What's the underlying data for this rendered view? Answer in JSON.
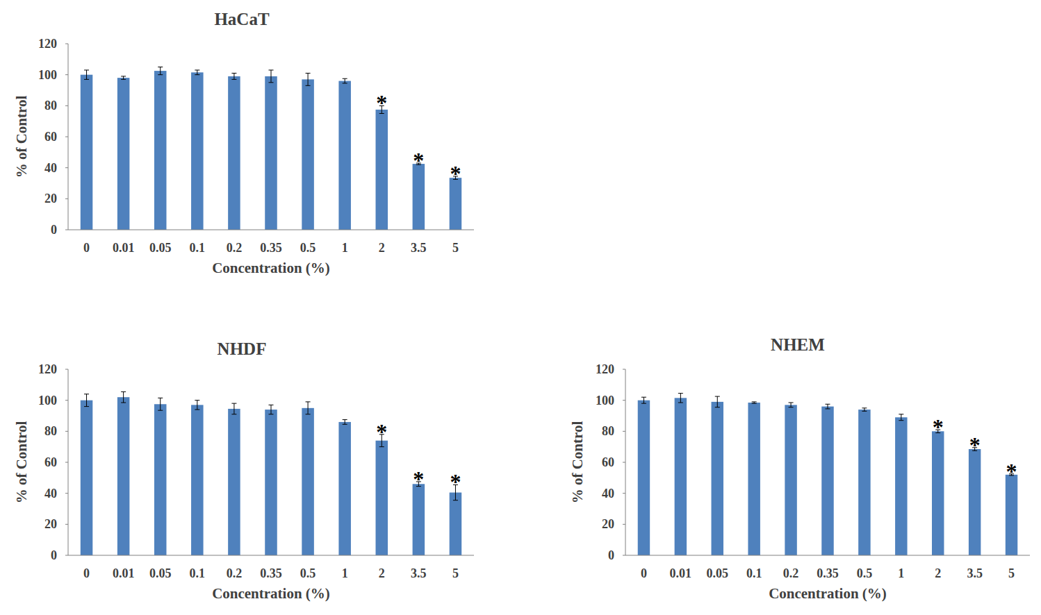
{
  "chart_data": [
    {
      "type": "bar",
      "title": "HaCaT",
      "categories": [
        "0",
        "0.01",
        "0.05",
        "0.1",
        "0.2",
        "0.35",
        "0.5",
        "1",
        "2",
        "3.5",
        "5"
      ],
      "values": [
        100,
        98,
        102.5,
        101.5,
        99,
        99,
        97,
        96,
        77.5,
        42.5,
        33.5
      ],
      "errors": [
        3,
        1,
        2.5,
        1.5,
        2,
        4,
        4,
        1.5,
        2.5,
        0.5,
        1
      ],
      "color": "#4f81bd",
      "ylim": [
        0,
        120
      ],
      "yticks": [
        0,
        20,
        40,
        60,
        80,
        100,
        120
      ],
      "grid": false,
      "x_label": "Concentration (%)",
      "y_label": "% of Control",
      "annotations": [
        {
          "x": "2",
          "text": "*"
        },
        {
          "x": "3.5",
          "text": "*"
        },
        {
          "x": "5",
          "text": "*"
        }
      ]
    },
    {
      "type": "bar",
      "title": "NHDF",
      "categories": [
        "0",
        "0.01",
        "0.05",
        "0.1",
        "0.2",
        "0.35",
        "0.5",
        "1",
        "2",
        "3.5",
        "5"
      ],
      "values": [
        100,
        102,
        97.5,
        97,
        94.5,
        94,
        95,
        86,
        74,
        46,
        40.5
      ],
      "errors": [
        4,
        3.5,
        4,
        3,
        3.5,
        3,
        4,
        1.5,
        4,
        1.5,
        5
      ],
      "color": "#4f81bd",
      "ylim": [
        0,
        120
      ],
      "yticks": [
        0,
        20,
        40,
        60,
        80,
        100,
        120
      ],
      "grid": false,
      "x_label": "Concentration (%)",
      "y_label": "% of Control",
      "annotations": [
        {
          "x": "2",
          "text": "*"
        },
        {
          "x": "3.5",
          "text": "*"
        },
        {
          "x": "5",
          "text": "*"
        }
      ]
    },
    {
      "type": "bar",
      "title": "NHEM",
      "categories": [
        "0",
        "0.01",
        "0.05",
        "0.1",
        "0.2",
        "0.35",
        "0.5",
        "1",
        "2",
        "3.5",
        "5"
      ],
      "values": [
        100,
        101.5,
        99,
        98.5,
        97,
        96,
        94,
        89,
        80,
        68.5,
        52
      ],
      "errors": [
        2,
        3,
        3.5,
        0.5,
        1.5,
        1.5,
        1,
        2,
        1,
        1,
        0.5
      ],
      "color": "#4f81bd",
      "ylim": [
        0,
        120
      ],
      "yticks": [
        0,
        20,
        40,
        60,
        80,
        100,
        120
      ],
      "grid": false,
      "x_label": "Concentration (%)",
      "y_label": "% of Control",
      "annotations": [
        {
          "x": "2",
          "text": "*"
        },
        {
          "x": "3.5",
          "text": "*"
        },
        {
          "x": "5",
          "text": "*"
        }
      ]
    }
  ]
}
